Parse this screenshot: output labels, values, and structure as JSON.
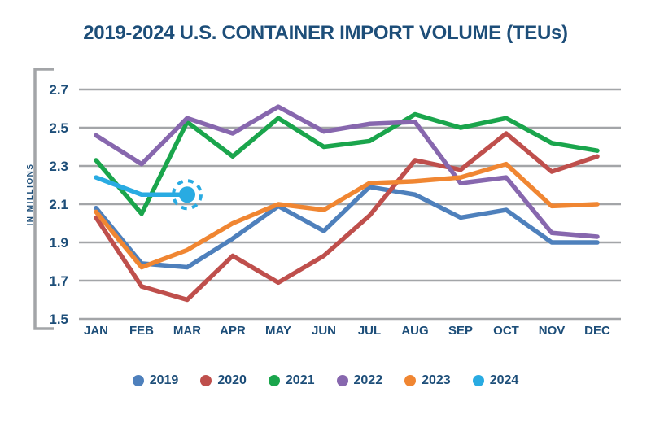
{
  "title": "2019-2024 U.S. CONTAINER IMPORT VOLUME (TEUs)",
  "colors": {
    "title_text": "#1d4e79",
    "axis_text": "#1d4e79",
    "gridline": "#a3a5a8",
    "axis_bracket": "#a3a5a8",
    "highlight_marker": "#29abe2"
  },
  "chart_data": {
    "type": "line",
    "title": "2019-2024 U.S. CONTAINER IMPORT VOLUME (TEUs)",
    "xlabel": "",
    "ylabel": "IN MILLIONS",
    "ylim": [
      1.5,
      2.7
    ],
    "yticks": [
      2.7,
      2.5,
      2.3,
      2.1,
      1.9,
      1.7,
      1.5
    ],
    "grid": true,
    "legend_position": "bottom",
    "categories": [
      "JAN",
      "FEB",
      "MAR",
      "APR",
      "MAY",
      "JUN",
      "JUL",
      "AUG",
      "SEP",
      "OCT",
      "NOV",
      "DEC"
    ],
    "series": [
      {
        "name": "2019",
        "color": "#4e80bc",
        "values": [
          2.08,
          1.79,
          1.77,
          1.92,
          2.09,
          1.96,
          2.19,
          2.15,
          2.03,
          2.07,
          1.9,
          1.9
        ]
      },
      {
        "name": "2020",
        "color": "#bf4f4c",
        "values": [
          2.03,
          1.67,
          1.6,
          1.83,
          1.69,
          1.83,
          2.04,
          2.33,
          2.28,
          2.47,
          2.27,
          2.35
        ]
      },
      {
        "name": "2021",
        "color": "#1aa54c",
        "values": [
          2.33,
          2.05,
          2.53,
          2.35,
          2.55,
          2.4,
          2.43,
          2.57,
          2.5,
          2.55,
          2.42,
          2.38
        ]
      },
      {
        "name": "2022",
        "color": "#8767ae",
        "values": [
          2.46,
          2.31,
          2.55,
          2.47,
          2.61,
          2.48,
          2.52,
          2.53,
          2.21,
          2.24,
          1.95,
          1.93
        ]
      },
      {
        "name": "2023",
        "color": "#f08632",
        "values": [
          2.06,
          1.77,
          1.86,
          2.0,
          2.1,
          2.07,
          2.21,
          2.22,
          2.24,
          2.31,
          2.09,
          2.1
        ]
      },
      {
        "name": "2024",
        "color": "#29abe2",
        "values": [
          2.24,
          2.15,
          2.15
        ]
      }
    ],
    "annotations": [
      {
        "type": "highlighted-endpoint",
        "series": "2024",
        "category": "MAR",
        "value": 2.15,
        "style": "solid dot with dashed circle"
      }
    ]
  }
}
